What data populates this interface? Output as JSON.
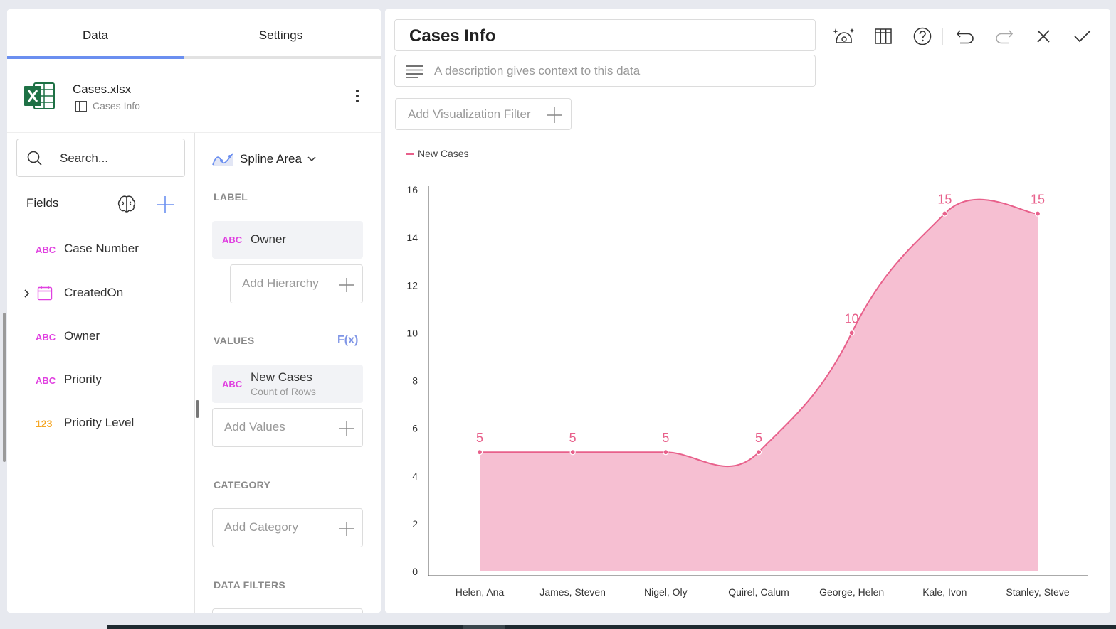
{
  "tabs": [
    {
      "label": "Data"
    },
    {
      "label": "Settings"
    }
  ],
  "source": {
    "file_name": "Cases.xlsx",
    "sheet_name": "Cases Info"
  },
  "search": {
    "placeholder": "Search..."
  },
  "fields": {
    "title": "Fields",
    "items": [
      {
        "type": "ABC",
        "name": "Case Number"
      },
      {
        "type": "date",
        "name": "CreatedOn"
      },
      {
        "type": "ABC",
        "name": "Owner"
      },
      {
        "type": "ABC",
        "name": "Priority"
      },
      {
        "type": "123",
        "name": "Priority Level"
      }
    ]
  },
  "visualization": {
    "type_label": "Spline Area"
  },
  "sections": {
    "label": {
      "title": "LABEL",
      "item": {
        "type": "ABC",
        "name": "Owner"
      },
      "add_label": "Add Hierarchy"
    },
    "values": {
      "title": "VALUES",
      "fx_label": "F(x)",
      "item": {
        "type": "ABC",
        "name": "New Cases",
        "sub": "Count of Rows"
      },
      "add_label": "Add Values"
    },
    "category": {
      "title": "CATEGORY",
      "add_label": "Add Category"
    },
    "data_filters": {
      "title": "DATA FILTERS"
    }
  },
  "editor": {
    "title": "Cases Info",
    "description_placeholder": "A description gives context to this data",
    "filter_label": "Add Visualization Filter"
  },
  "toolbar": {
    "icons": [
      "ai-insights-icon",
      "table-view-icon",
      "help-icon",
      "undo-icon",
      "redo-icon",
      "close-icon",
      "check-icon"
    ]
  },
  "colors": {
    "accent": "#6b8ff0",
    "series": "#e8608b",
    "series_fill": "#f6bfd2"
  },
  "chart_data": {
    "type": "area",
    "categories": [
      "Helen, Ana",
      "James, Steven",
      "Nigel, Oly",
      "Quirel, Calum",
      "George, Helen",
      "Kale, Ivon",
      "Stanley, Steve"
    ],
    "series": [
      {
        "name": "New Cases",
        "values": [
          5,
          5,
          5,
          5,
          10,
          15,
          15
        ]
      }
    ],
    "ylim": [
      0,
      16
    ],
    "yticks": [
      0,
      2,
      4,
      6,
      8,
      10,
      12,
      14,
      16
    ],
    "legend_position": "top-left",
    "grid": false,
    "data_labels": true
  }
}
